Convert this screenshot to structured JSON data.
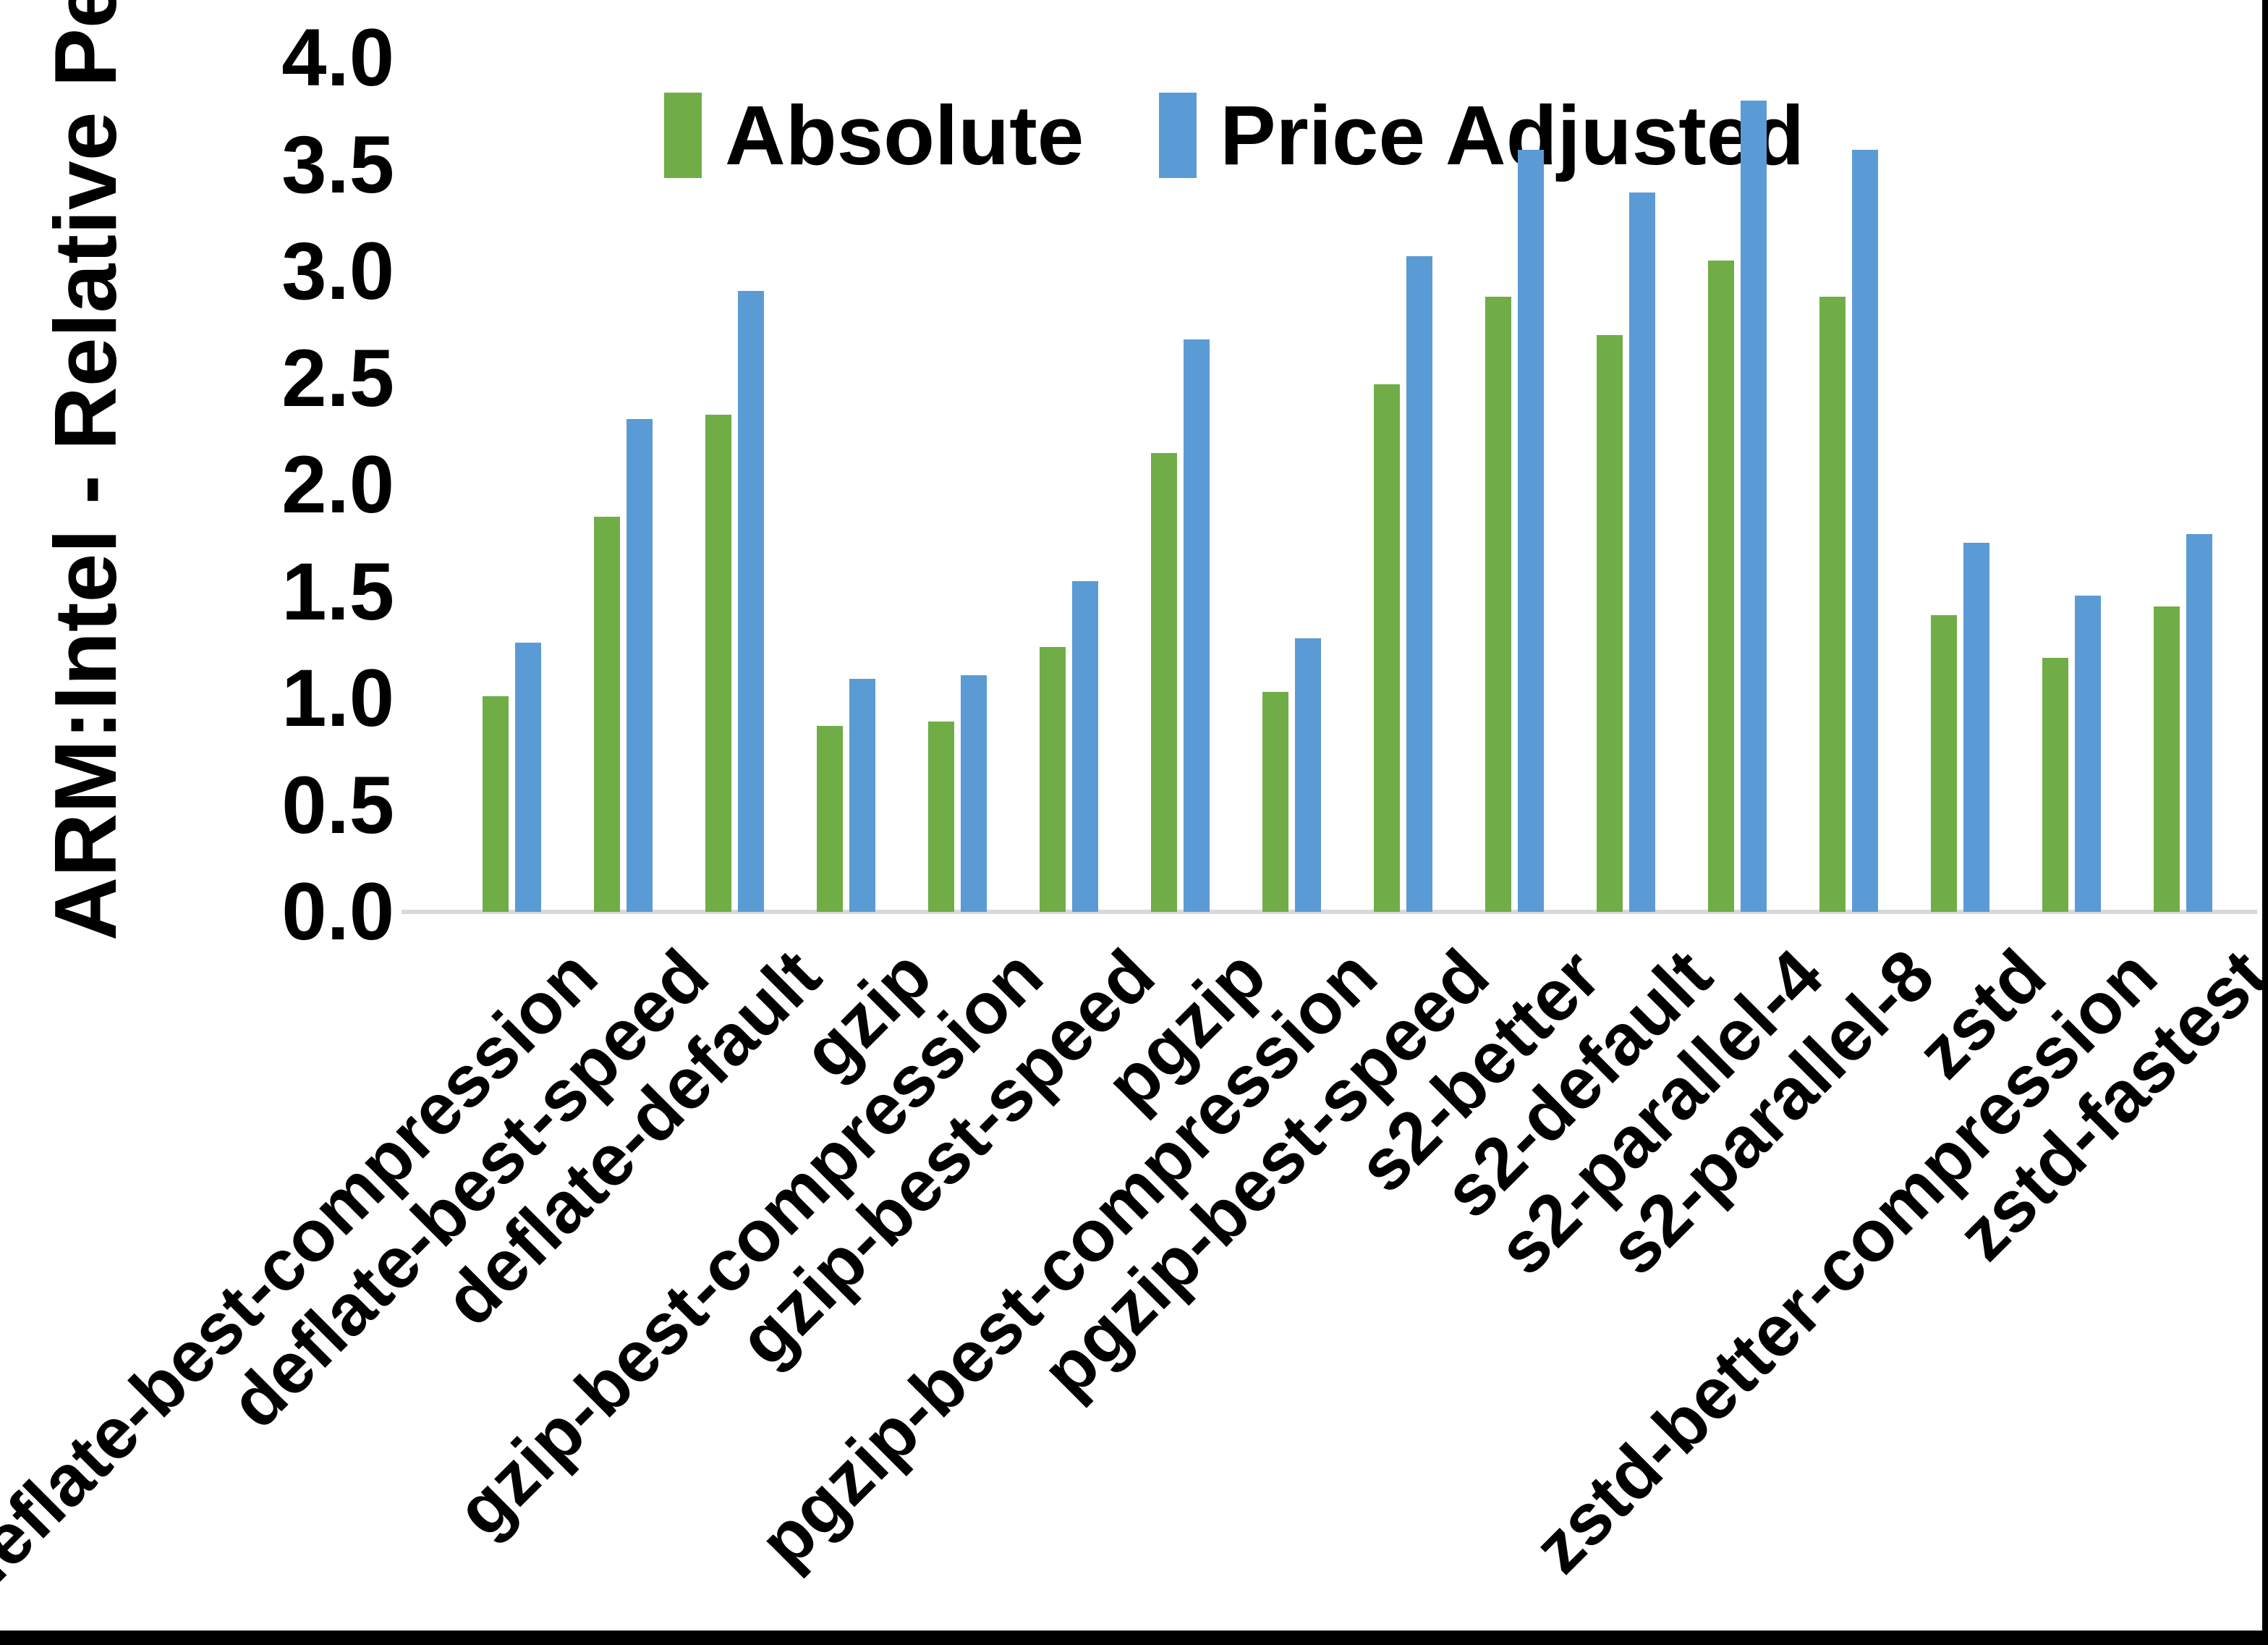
{
  "y_axis_title": "ARM:Intel - Relative Performance",
  "chart_data": {
    "type": "bar",
    "title": "",
    "xlabel": "",
    "ylabel": "ARM:Intel - Relative Performance",
    "ylim": [
      0.0,
      4.0
    ],
    "ytick_step": 0.5,
    "yticks": [
      "0.0",
      "0.5",
      "1.0",
      "1.5",
      "2.0",
      "2.5",
      "3.0",
      "3.5",
      "4.0"
    ],
    "grid": false,
    "legend_position": "top-center",
    "categories": [
      "deflate-best-compression",
      "deflate-best-speed",
      "deflate-default",
      "gzip",
      "gzip-best-compression",
      "gzip-best-speed",
      "pgzip",
      "pgzip-best-compression",
      "pgzip-best-speed",
      "s2-better",
      "s2-default",
      "s2-parallel-4",
      "s2-parallel-8",
      "zstd",
      "zstd-better-compression",
      "zstd-fastest"
    ],
    "series": [
      {
        "name": "Absolute",
        "color": "#70AD47",
        "values": [
          1.01,
          1.85,
          2.33,
          0.87,
          0.89,
          1.24,
          2.15,
          1.03,
          2.47,
          2.88,
          2.7,
          3.05,
          2.88,
          1.39,
          1.19,
          1.43
        ]
      },
      {
        "name": "Price Adjusted",
        "color": "#5B9BD5",
        "values": [
          1.26,
          2.31,
          2.91,
          1.09,
          1.11,
          1.55,
          2.68,
          1.28,
          3.07,
          3.57,
          3.37,
          3.8,
          3.57,
          1.73,
          1.48,
          1.77
        ]
      }
    ],
    "colors": {
      "axis_line": "#d9d9d9",
      "text": "#000000",
      "background": "#ffffff",
      "frame_border": "#000000"
    }
  }
}
